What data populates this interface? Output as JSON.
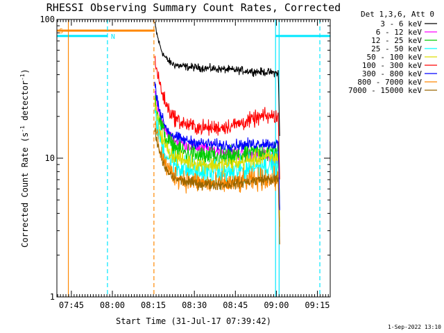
{
  "chart_data": {
    "type": "line",
    "title": "RHESSI Observing Summary Count Rates, Corrected",
    "xlabel": "Start Time (31-Jul-17 07:39:42)",
    "ylabel": "Corrected Count Rate (s",
    "ylabel_sup1": "-1",
    "ylabel_mid": " detector",
    "ylabel_sup2": "-1",
    "ylabel_end": ")",
    "y_scale": "log",
    "ylim": [
      1,
      100
    ],
    "xlim_minutes": [
      0,
      100
    ],
    "xticks": [
      {
        "t": 5.3,
        "label": "07:45"
      },
      {
        "t": 20.3,
        "label": "08:00"
      },
      {
        "t": 35.3,
        "label": "08:15"
      },
      {
        "t": 50.3,
        "label": "08:30"
      },
      {
        "t": 65.3,
        "label": "08:45"
      },
      {
        "t": 80.3,
        "label": "09:00"
      },
      {
        "t": 95.3,
        "label": "09:15"
      }
    ],
    "yticks": [
      {
        "v": 1,
        "label": "1"
      },
      {
        "v": 10,
        "label": "10"
      },
      {
        "v": 100,
        "label": "100"
      }
    ],
    "legend_header": "Det 1,3,6, Att 0",
    "data_window_minutes": [
      35.8,
      81.5
    ],
    "series": [
      {
        "name": "3 - 6 keV",
        "color": "#000000",
        "start": 47,
        "end": 41,
        "curve": 0,
        "noise": 0.035,
        "decay": 1.0,
        "decay_tau": 2.0
      },
      {
        "name": "6 - 12 keV",
        "color": "#ff00ff",
        "start": 14,
        "end": 10,
        "curve": 0.7,
        "noise": 0.06,
        "decay": 1.2,
        "decay_tau": 2.0
      },
      {
        "name": "12 - 25 keV",
        "color": "#00cc00",
        "start": 13,
        "end": 11,
        "curve": 2.0,
        "noise": 0.1,
        "decay": 1.2,
        "decay_tau": 2.0
      },
      {
        "name": "25 - 50 keV",
        "color": "#00ffff",
        "start": 10,
        "end": 9,
        "curve": 1.8,
        "noise": 0.12,
        "decay": 1.2,
        "decay_tau": 2.0
      },
      {
        "name": "50 - 100 keV",
        "color": "#dddd00",
        "start": 11,
        "end": 10,
        "curve": 1.6,
        "noise": 0.07,
        "decay": 1.3,
        "decay_tau": 2.0
      },
      {
        "name": "100 - 300 keV",
        "color": "#ff0000",
        "start": 20,
        "end": 20,
        "curve": 3.5,
        "noise": 0.07,
        "decay": 1.6,
        "decay_tau": 2.5
      },
      {
        "name": "300 - 800 keV",
        "color": "#0000ff",
        "start": 15,
        "end": 12.5,
        "curve": 1.3,
        "noise": 0.05,
        "decay": 1.3,
        "decay_tau": 2.0
      },
      {
        "name": "800 - 7000 keV",
        "color": "#ff8800",
        "start": 8,
        "end": 7,
        "curve": 1.0,
        "noise": 0.1,
        "decay": 1.3,
        "decay_tau": 2.0
      },
      {
        "name": "7000 - 15000 keV",
        "color": "#996600",
        "start": 7.5,
        "end": 7,
        "curve": 0.8,
        "noise": 0.05,
        "decay": 1.2,
        "decay_tau": 2.0
      }
    ],
    "flag_bars": [
      {
        "label": "S",
        "color": "#ff8800",
        "t0": 0,
        "t1": 35.8,
        "level": 83
      },
      {
        "label": "N",
        "color": "#00e8ff",
        "t0": 0,
        "t1": 18.5,
        "level": 76
      },
      {
        "label": "",
        "color": "#00e8ff",
        "t0": 80,
        "t1": 100,
        "level": 76
      }
    ],
    "vertical_markers": [
      {
        "t": 4.2,
        "color": "#ff8800",
        "style": "solid"
      },
      {
        "t": 18.5,
        "color": "#00e8ff",
        "style": "dashed"
      },
      {
        "t": 35.5,
        "color": "#ff8800",
        "style": "dashed"
      },
      {
        "t": 80.0,
        "color": "#00e8ff",
        "style": "solid"
      },
      {
        "t": 81.3,
        "color": "#00e8ff",
        "style": "solid"
      },
      {
        "t": 96.2,
        "color": "#00e8ff",
        "style": "dashed"
      }
    ],
    "timestamp": "1-Sep-2022 13:10"
  }
}
